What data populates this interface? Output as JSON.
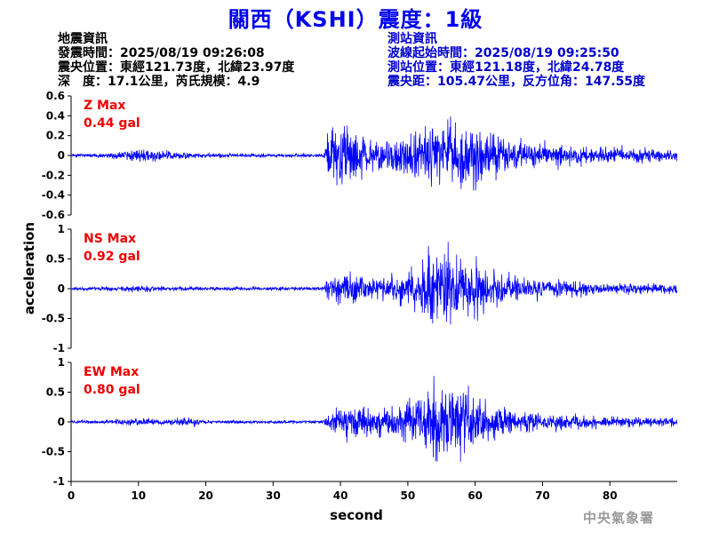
{
  "header": {
    "title": "關西（KSHI）震度：1級"
  },
  "quake_info": {
    "heading": "地震資訊",
    "origin_time": "發震時間：2025/08/19 09:26:08",
    "epicenter": "震央位置：東經121.73度，北緯23.97度",
    "depth_magnitude": "深　度：17.1公里，芮氏規模：4.9"
  },
  "station_info": {
    "heading": "測站資訊",
    "wave_start": "波線起始時間：2025/08/19 09:25:50",
    "location": "測站位置：東經121.18度，北緯24.78度",
    "distance": "震央距：105.47公里，反方位角：147.55度"
  },
  "watermark": "中央氣象署",
  "colors": {
    "trace": "#0000ff",
    "label": "#ee0000",
    "title": "#0000ee",
    "station_text": "#0000cc"
  },
  "chart_data": {
    "type": "line",
    "xlabel": "second",
    "ylabel": "acceleration",
    "xlim": [
      0,
      90
    ],
    "xticks": [
      0,
      10,
      20,
      30,
      40,
      50,
      60,
      70,
      80
    ],
    "grid": false,
    "panels": [
      {
        "name": "Z Max",
        "max_label": "0.44 gal",
        "ylim": [
          -0.6,
          0.6
        ],
        "yticks": [
          -0.6,
          -0.4,
          -0.2,
          0,
          0.2,
          0.4,
          0.6
        ],
        "envelope": [
          [
            0,
            0.012
          ],
          [
            5,
            0.015
          ],
          [
            9,
            0.04
          ],
          [
            11,
            0.05
          ],
          [
            13,
            0.03
          ],
          [
            16,
            0.025
          ],
          [
            20,
            0.015
          ],
          [
            30,
            0.012
          ],
          [
            37.5,
            0.012
          ],
          [
            38,
            0.12
          ],
          [
            39,
            0.2
          ],
          [
            42,
            0.15
          ],
          [
            45,
            0.1
          ],
          [
            49,
            0.15
          ],
          [
            52,
            0.2
          ],
          [
            55,
            0.22
          ],
          [
            57,
            0.24
          ],
          [
            60,
            0.22
          ],
          [
            63,
            0.14
          ],
          [
            66,
            0.1
          ],
          [
            70,
            0.08
          ],
          [
            80,
            0.05
          ],
          [
            90,
            0.04
          ]
        ]
      },
      {
        "name": "NS Max",
        "max_label": "0.92 gal",
        "ylim": [
          -1,
          1
        ],
        "yticks": [
          -1,
          -0.5,
          0,
          0.5,
          1
        ],
        "envelope": [
          [
            0,
            0.015
          ],
          [
            5,
            0.02
          ],
          [
            10,
            0.04
          ],
          [
            15,
            0.025
          ],
          [
            20,
            0.02
          ],
          [
            30,
            0.02
          ],
          [
            37.5,
            0.02
          ],
          [
            38,
            0.1
          ],
          [
            40,
            0.2
          ],
          [
            44,
            0.15
          ],
          [
            47,
            0.12
          ],
          [
            50,
            0.2
          ],
          [
            53,
            0.38
          ],
          [
            55,
            0.45
          ],
          [
            57,
            0.35
          ],
          [
            60,
            0.32
          ],
          [
            63,
            0.22
          ],
          [
            66,
            0.14
          ],
          [
            70,
            0.1
          ],
          [
            80,
            0.06
          ],
          [
            90,
            0.05
          ]
        ]
      },
      {
        "name": "EW Max",
        "max_label": "0.80 gal",
        "ylim": [
          -1,
          1
        ],
        "yticks": [
          -1,
          -0.5,
          0,
          0.5,
          1
        ],
        "envelope": [
          [
            0,
            0.015
          ],
          [
            5,
            0.02
          ],
          [
            10,
            0.05
          ],
          [
            14,
            0.03
          ],
          [
            18,
            0.05
          ],
          [
            20,
            0.02
          ],
          [
            30,
            0.02
          ],
          [
            37.5,
            0.02
          ],
          [
            38,
            0.08
          ],
          [
            40,
            0.2
          ],
          [
            44,
            0.15
          ],
          [
            47,
            0.15
          ],
          [
            50,
            0.25
          ],
          [
            53,
            0.4
          ],
          [
            56,
            0.42
          ],
          [
            59,
            0.35
          ],
          [
            62,
            0.22
          ],
          [
            65,
            0.15
          ],
          [
            70,
            0.1
          ],
          [
            80,
            0.06
          ],
          [
            90,
            0.05
          ]
        ]
      }
    ]
  }
}
